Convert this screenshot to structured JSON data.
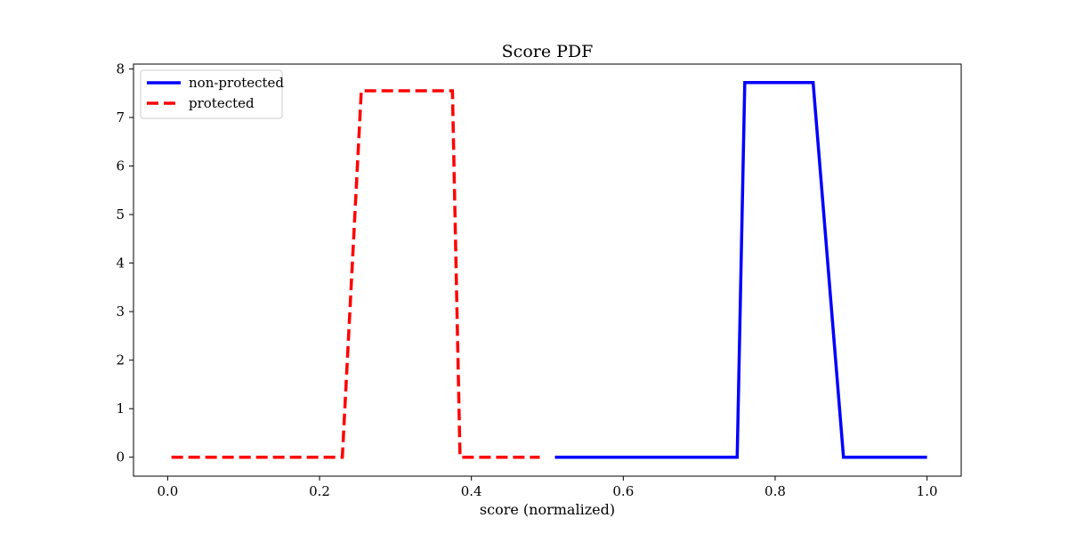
{
  "chart_data": {
    "type": "line",
    "title": "Score PDF",
    "xlabel": "score (normalized)",
    "ylabel": "",
    "xlim": [
      -0.045,
      1.045
    ],
    "ylim": [
      -0.39,
      8.1
    ],
    "xticks": [
      0.0,
      0.2,
      0.4,
      0.6,
      0.8,
      1.0
    ],
    "xtick_labels": [
      "0.0",
      "0.2",
      "0.4",
      "0.6",
      "0.8",
      "1.0"
    ],
    "yticks": [
      0,
      1,
      2,
      3,
      4,
      5,
      6,
      7,
      8
    ],
    "ytick_labels": [
      "0",
      "1",
      "2",
      "3",
      "4",
      "5",
      "6",
      "7",
      "8"
    ],
    "grid": false,
    "legend_position": "top-left",
    "series": [
      {
        "name": "non-protected",
        "color": "#0000ff",
        "style": "solid",
        "x": [
          0.51,
          0.75,
          0.76,
          0.85,
          0.89,
          1.0
        ],
        "y": [
          0,
          0,
          7.72,
          7.72,
          0,
          0
        ]
      },
      {
        "name": "protected",
        "color": "#ff0000",
        "style": "dashed",
        "x": [
          0.005,
          0.23,
          0.255,
          0.375,
          0.385,
          0.49
        ],
        "y": [
          0,
          0,
          7.55,
          7.55,
          0,
          0
        ]
      }
    ]
  }
}
